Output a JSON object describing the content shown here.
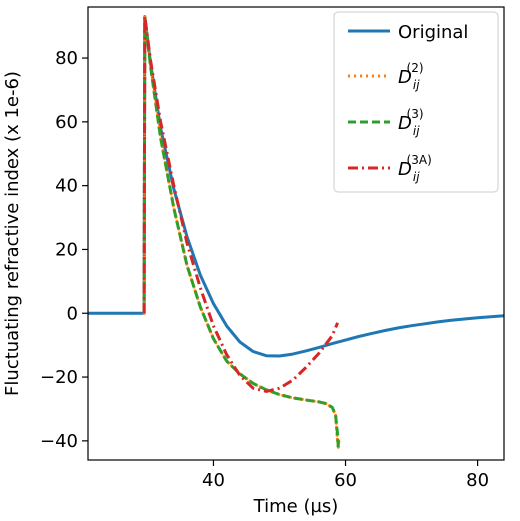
{
  "chart_data": {
    "type": "line",
    "xlabel": "Time (µs)",
    "ylabel": "Fluctuating refractive index (x 1e-6)",
    "xlim": [
      21,
      84
    ],
    "ylim": [
      -46,
      96
    ],
    "xticks": [
      40,
      60,
      80
    ],
    "yticks": [
      -40,
      -20,
      0,
      20,
      40,
      60,
      80
    ],
    "grid": false,
    "legend_position": "top-right",
    "series": [
      {
        "name": "Original",
        "color": "#1f77b4",
        "style": "solid",
        "x": [
          21,
          24,
          27,
          29.5,
          29.6,
          30.5,
          32,
          34,
          36,
          38,
          40,
          42,
          44,
          46,
          48,
          50,
          52,
          54,
          56,
          58,
          60,
          62,
          64,
          66,
          68,
          70,
          72,
          74,
          76,
          78,
          80,
          82,
          84
        ],
        "y": [
          0,
          0,
          0,
          0,
          93,
          78,
          58,
          39,
          24,
          12,
          3,
          -4,
          -9,
          -12,
          -13.3,
          -13.4,
          -12.8,
          -11.8,
          -10.7,
          -9.5,
          -8.4,
          -7.3,
          -6.3,
          -5.4,
          -4.6,
          -3.9,
          -3.3,
          -2.7,
          -2.2,
          -1.8,
          -1.4,
          -1.1,
          -0.8
        ]
      },
      {
        "name": "D_ij^(2)",
        "label_main": "D",
        "label_sub": "ij",
        "label_sup": "(2)",
        "color": "#ff7f0e",
        "style": "dotted",
        "x": [
          29.5,
          29.6,
          30.5,
          32,
          34,
          36,
          38,
          40,
          42,
          44,
          46,
          48,
          50,
          52,
          54,
          56,
          57,
          58,
          58.5,
          58.8,
          58.9,
          59
        ],
        "y": [
          0,
          93,
          77,
          55,
          33,
          15,
          2,
          -8,
          -15,
          -19,
          -22,
          -24,
          -25.5,
          -26.5,
          -27.2,
          -27.8,
          -28.3,
          -29.5,
          -32,
          -40,
          -42,
          -40
        ]
      },
      {
        "name": "D_ij^(3)",
        "label_main": "D",
        "label_sub": "ij",
        "label_sup": "(3)",
        "color": "#2ca02c",
        "style": "dashed",
        "x": [
          29.5,
          29.6,
          30.5,
          32,
          34,
          36,
          38,
          40,
          42,
          44,
          46,
          48,
          50,
          52,
          54,
          56,
          57,
          58,
          58.5,
          58.8,
          58.9
        ],
        "y": [
          0,
          93,
          77,
          55,
          33,
          15,
          2,
          -8,
          -15,
          -19,
          -22,
          -24,
          -25.5,
          -26.5,
          -27.2,
          -27.8,
          -28.3,
          -29.5,
          -32,
          -38,
          -42
        ]
      },
      {
        "name": "D_ij^(3A)",
        "label_main": "D",
        "label_sub": "ij",
        "label_sup": "(3A)",
        "color": "#d62728",
        "style": "dashdot",
        "x": [
          29.5,
          29.6,
          30.5,
          32,
          34,
          36,
          38,
          40,
          42,
          44,
          46,
          48,
          50,
          52,
          54,
          56,
          58,
          58.8
        ],
        "y": [
          0,
          93,
          79,
          60,
          40,
          22,
          8,
          -4,
          -13,
          -19.5,
          -23.5,
          -24.5,
          -23.5,
          -21,
          -17,
          -12.5,
          -7,
          -3
        ]
      }
    ]
  }
}
